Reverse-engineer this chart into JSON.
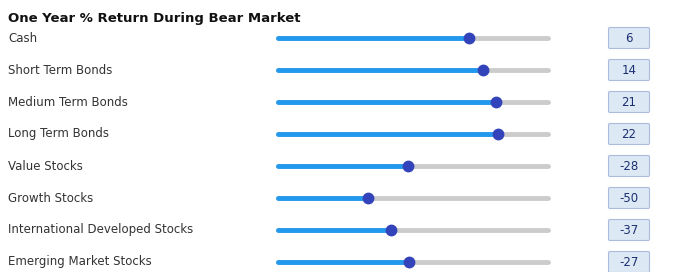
{
  "title": "One Year % Return During Bear Market",
  "categories": [
    "Cash",
    "Short Term Bonds",
    "Medium Term Bonds",
    "Long Term Bonds",
    "Value Stocks",
    "Growth Stocks",
    "International Developed Stocks",
    "Emerging Market Stocks"
  ],
  "values": [
    6,
    14,
    21,
    22,
    -28,
    -50,
    -37,
    -27
  ],
  "range_min": -100,
  "range_max": 50,
  "bg_color": "#ffffff",
  "track_color_active": "#2299ee",
  "track_color_inactive": "#cccccc",
  "thumb_color": "#3344bb",
  "title_color": "#111111",
  "label_color": "#333333",
  "value_box_bg": "#dde8f5",
  "value_box_border": "#aabbdd",
  "value_text_color": "#1a3070",
  "title_fontsize": 9.5,
  "label_fontsize": 8.5,
  "value_fontsize": 8.5,
  "track_linewidth": 3.5,
  "thumb_size": 7.5
}
